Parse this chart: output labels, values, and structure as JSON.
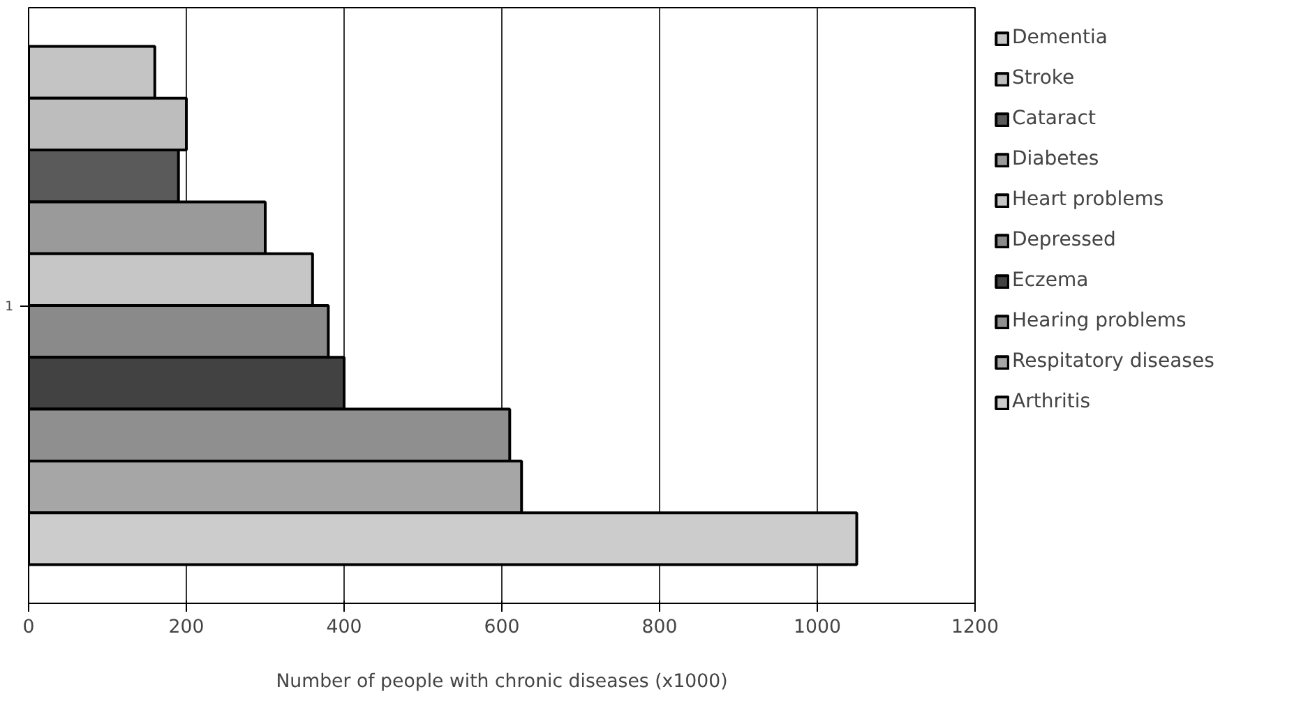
{
  "chart_data": {
    "type": "bar",
    "orientation": "horizontal",
    "categories": [
      "1"
    ],
    "xlabel": "Number of people with chronic diseases (x1000)",
    "xlim": [
      0,
      1200
    ],
    "xticks": [
      0,
      200,
      400,
      600,
      800,
      1000,
      1200
    ],
    "grid": "x",
    "legend": "right",
    "series": [
      {
        "name": "Dementia",
        "color": "#c4c4c4",
        "values": [
          160
        ]
      },
      {
        "name": "Stroke",
        "color": "#bdbdbd",
        "values": [
          200
        ]
      },
      {
        "name": "Cataract",
        "color": "#5a5a5a",
        "values": [
          190
        ]
      },
      {
        "name": "Diabetes",
        "color": "#9a9a9a",
        "values": [
          300
        ]
      },
      {
        "name": "Heart problems",
        "color": "#c6c6c6",
        "values": [
          360
        ]
      },
      {
        "name": "Depressed",
        "color": "#8a8a8a",
        "values": [
          380
        ]
      },
      {
        "name": "Eczema",
        "color": "#424242",
        "values": [
          400
        ]
      },
      {
        "name": "Hearing problems",
        "color": "#8f8f8f",
        "values": [
          610
        ]
      },
      {
        "name": "Respitatory diseases",
        "color": "#a6a6a6",
        "values": [
          625
        ]
      },
      {
        "name": "Arthritis",
        "color": "#cccccc",
        "values": [
          1050
        ]
      }
    ]
  }
}
